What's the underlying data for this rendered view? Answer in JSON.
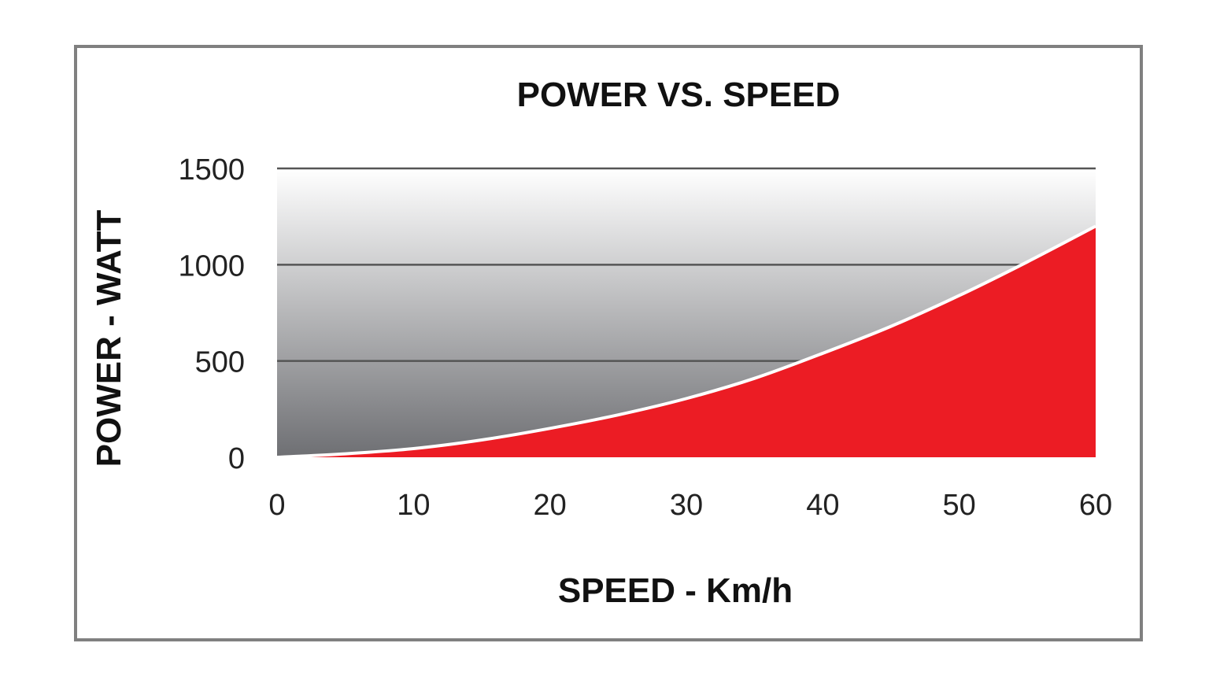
{
  "chart_data": {
    "type": "area",
    "title": "POWER VS. SPEED",
    "xlabel": "SPEED - Km/h",
    "ylabel": "POWER - WATT",
    "xlim": [
      0,
      60
    ],
    "ylim": [
      0,
      1500
    ],
    "x_ticks": [
      "0",
      "10",
      "20",
      "30",
      "40",
      "50",
      "60"
    ],
    "y_ticks": [
      "0",
      "500",
      "1000",
      "1500"
    ],
    "grid": true,
    "x": [
      0,
      5,
      10,
      15,
      20,
      25,
      30,
      35,
      40,
      45,
      50,
      55,
      60
    ],
    "series": [
      {
        "values": [
          0,
          18,
          45,
          90,
          150,
          220,
          305,
          410,
          540,
          680,
          840,
          1015,
          1200
        ]
      }
    ],
    "colors": {
      "fill": "#ec1c24",
      "line": "#ffffff",
      "grid": "#555555",
      "background_top": "#ffffff",
      "background_bottom": "#6e6f73"
    }
  }
}
